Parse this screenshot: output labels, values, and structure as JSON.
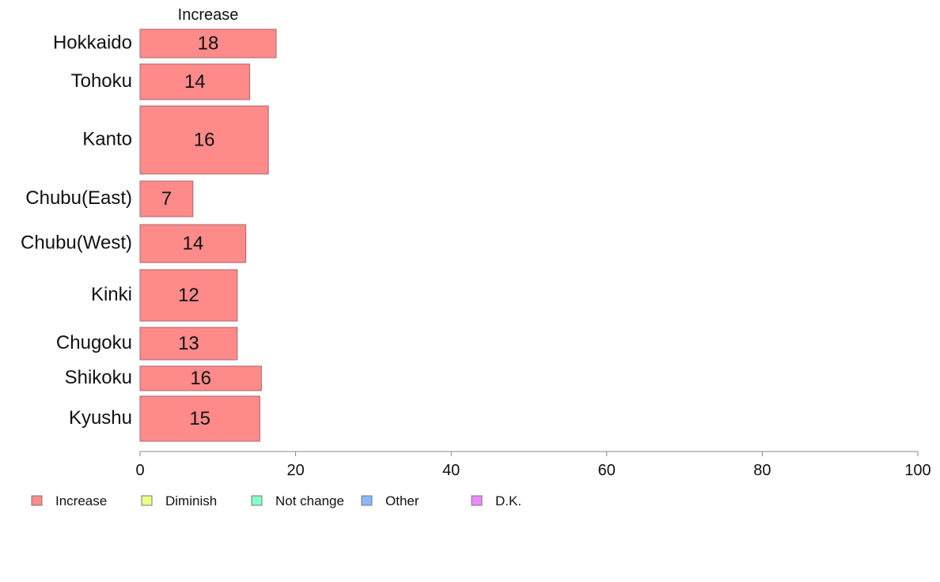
{
  "chart_data": {
    "type": "bar",
    "orientation": "horizontal",
    "title": "",
    "xlabel": "",
    "ylabel": "",
    "xlim": [
      0,
      100
    ],
    "xticks": [
      "0",
      "20",
      "40",
      "60",
      "80",
      "100"
    ],
    "grid": false,
    "legend_position": "bottom",
    "categories": [
      "Hokkaido",
      "Tohoku",
      "Kanto",
      "Chubu(East)",
      "Chubu(West)",
      "Kinki",
      "Chugoku",
      "Shikoku",
      "Kyushu"
    ],
    "series": [
      {
        "name": "Increase",
        "color": "#ff8a8a",
        "values": [
          17.5,
          14.1,
          16.5,
          6.8,
          13.6,
          12.5,
          12.5,
          15.6,
          15.4
        ],
        "labels": [
          "18",
          "14",
          "16",
          "7",
          "14",
          "12",
          "13",
          "16",
          "15"
        ]
      }
    ],
    "column_header": "Increase",
    "legend": [
      {
        "label": "Increase",
        "color": "#ff8a8a"
      },
      {
        "label": "Diminish",
        "color": "#eeff88"
      },
      {
        "label": "Not change",
        "color": "#88ffc8"
      },
      {
        "label": "Other",
        "color": "#88b8f8"
      },
      {
        "label": "D.K.",
        "color": "#ee88f8"
      }
    ]
  }
}
